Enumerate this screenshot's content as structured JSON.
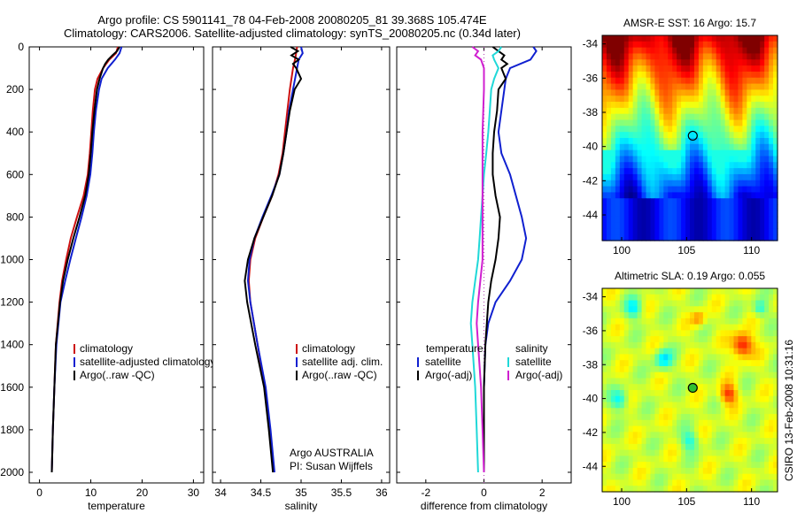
{
  "header": {
    "line1": "Argo profile: CS 5901141_78 04-Feb-2008 20080205_81 39.368S 105.474E",
    "line2": "Climatology: CARS2006. Satellite-adjusted climatology: synTS_20080205.nc (0.34d later)"
  },
  "credit": "CSIRO 13-Feb-2008 10:31:16",
  "chart_data": [
    {
      "type": "line",
      "xlabel": "temperature",
      "xlim": [
        -2,
        32
      ],
      "ylim": [
        2050,
        0
      ],
      "xticks": [
        0,
        10,
        20,
        30
      ],
      "yticks": [
        0,
        200,
        400,
        600,
        800,
        1000,
        1200,
        1400,
        1600,
        1800,
        2000
      ],
      "legend": {
        "placement": "lower-center",
        "entries": [
          {
            "label": "climatology",
            "color": "#cc1010"
          },
          {
            "label": "satellite-adjusted climatology",
            "color": "#1020d0"
          },
          {
            "label": "Argo(..raw -QC)",
            "color": "#000000"
          }
        ]
      },
      "series": [
        {
          "color": "#cc1010",
          "depth": [
            0,
            30,
            60,
            100,
            150,
            200,
            300,
            400,
            500,
            600,
            700,
            800,
            900,
            1000,
            1100,
            1200,
            1400,
            1600,
            1800,
            2000
          ],
          "values": [
            15.3,
            14.9,
            13.6,
            12.4,
            11.3,
            10.8,
            10.4,
            10.1,
            9.8,
            9.4,
            8.6,
            7.3,
            6.1,
            5.2,
            4.4,
            3.9,
            3.2,
            2.9,
            2.6,
            2.4
          ]
        },
        {
          "color": "#1020d0",
          "depth": [
            0,
            30,
            60,
            100,
            150,
            200,
            300,
            400,
            500,
            600,
            700,
            800,
            900,
            1000,
            1100,
            1200,
            1400,
            1600,
            1800,
            2000
          ],
          "values": [
            16.0,
            15.6,
            14.7,
            13.3,
            12.1,
            11.6,
            11.0,
            10.6,
            10.3,
            9.9,
            9.2,
            8.2,
            7.1,
            6.0,
            5.0,
            4.1,
            3.3,
            2.9,
            2.6,
            2.4
          ]
        },
        {
          "color": "#000000",
          "depth": [
            0,
            20,
            40,
            60,
            80,
            100,
            150,
            200,
            300,
            400,
            500,
            600,
            700,
            800,
            900,
            1000,
            1100,
            1200,
            1400,
            1600,
            1800,
            2000
          ],
          "values": [
            15.6,
            15.1,
            14.2,
            13.4,
            12.8,
            12.4,
            11.7,
            11.2,
            10.7,
            10.3,
            10.0,
            9.6,
            8.9,
            7.8,
            6.6,
            5.5,
            4.6,
            4.0,
            3.2,
            2.9,
            2.6,
            2.4
          ]
        }
      ]
    },
    {
      "type": "line",
      "xlabel": "salinity",
      "xlim": [
        33.9,
        36.1
      ],
      "ylim": [
        2050,
        0
      ],
      "xticks": [
        34,
        34.5,
        35,
        35.5,
        36
      ],
      "legend": {
        "placement": "lower-right",
        "entries": [
          {
            "label": "climatology",
            "color": "#cc1010"
          },
          {
            "label": "satellite adj. clim.",
            "color": "#1020d0"
          },
          {
            "label": "Argo(..raw -QC)",
            "color": "#000000"
          }
        ]
      },
      "annotation": [
        "Argo AUSTRALIA",
        "PI: Susan Wijffels"
      ],
      "series": [
        {
          "color": "#cc1010",
          "depth": [
            0,
            50,
            100,
            200,
            300,
            400,
            500,
            600,
            700,
            800,
            900,
            1000,
            1100,
            1200,
            1400,
            1600,
            1800,
            2000
          ],
          "values": [
            34.95,
            34.93,
            34.9,
            34.86,
            34.83,
            34.8,
            34.77,
            34.72,
            34.64,
            34.53,
            34.43,
            34.37,
            34.35,
            34.37,
            34.46,
            34.55,
            34.61,
            34.66
          ]
        },
        {
          "color": "#1020d0",
          "depth": [
            0,
            30,
            60,
            100,
            200,
            300,
            400,
            500,
            600,
            700,
            800,
            900,
            1000,
            1100,
            1200,
            1400,
            1600,
            1800,
            2000
          ],
          "values": [
            35.0,
            35.02,
            34.97,
            34.95,
            34.9,
            34.85,
            34.82,
            34.78,
            34.73,
            34.63,
            34.52,
            34.42,
            34.36,
            34.34,
            34.37,
            34.46,
            34.56,
            34.62,
            34.67
          ]
        },
        {
          "color": "#000000",
          "depth": [
            0,
            20,
            40,
            60,
            80,
            100,
            150,
            200,
            300,
            400,
            500,
            600,
            700,
            800,
            900,
            1000,
            1100,
            1200,
            1400,
            1600,
            1800,
            2000
          ],
          "values": [
            34.87,
            34.96,
            34.88,
            34.97,
            34.9,
            34.94,
            35.0,
            34.92,
            34.86,
            34.82,
            34.78,
            34.73,
            34.64,
            34.53,
            34.42,
            34.34,
            34.3,
            34.33,
            34.43,
            34.54,
            34.6,
            34.65
          ]
        }
      ]
    },
    {
      "type": "line",
      "xlabel": "difference from climatology",
      "xlim": [
        -3,
        3
      ],
      "ylim": [
        2050,
        0
      ],
      "xticks": [
        -2,
        0,
        2
      ],
      "zero_line": true,
      "legend": {
        "placement": "lower-center",
        "columns": [
          {
            "heading": "temperature",
            "entries": [
              {
                "label": "satellite",
                "color": "#1020d0"
              },
              {
                "label": "Argo(-adj)",
                "color": "#000000"
              }
            ]
          },
          {
            "heading": "salinity",
            "entries": [
              {
                "label": "satellite",
                "color": "#20d8d8"
              },
              {
                "label": "Argo(-adj)",
                "color": "#d020d0"
              }
            ]
          }
        ]
      },
      "series": [
        {
          "name": "satellite",
          "color": "#1020d0",
          "depth": [
            0,
            20,
            60,
            100,
            150,
            200,
            300,
            400,
            500,
            600,
            700,
            800,
            900,
            1000,
            1100,
            1200,
            1300,
            1400,
            1600,
            1800,
            2000
          ],
          "values": [
            1.7,
            1.8,
            1.6,
            0.9,
            0.75,
            0.7,
            0.6,
            0.5,
            0.6,
            0.9,
            1.1,
            1.3,
            1.45,
            1.3,
            0.9,
            0.4,
            0.15,
            0.05,
            0.0,
            0.0,
            0.0
          ]
        },
        {
          "name": "Argo(-adj)",
          "color": "#000000",
          "depth": [
            0,
            20,
            40,
            60,
            80,
            100,
            150,
            200,
            300,
            400,
            500,
            600,
            700,
            800,
            900,
            1000,
            1100,
            1200,
            1400,
            1600,
            1800,
            2000
          ],
          "values": [
            0.3,
            0.5,
            0.7,
            0.6,
            0.8,
            0.6,
            0.75,
            0.5,
            0.45,
            0.35,
            0.3,
            0.3,
            0.4,
            0.55,
            0.5,
            0.4,
            0.25,
            0.15,
            0.05,
            0.0,
            0.0,
            0.0
          ]
        },
        {
          "name": "satellite",
          "color": "#20d8d8",
          "depth": [
            0,
            20,
            40,
            60,
            100,
            150,
            200,
            300,
            400,
            500,
            600,
            700,
            800,
            900,
            1000,
            1100,
            1200,
            1300,
            1400,
            1600,
            1800,
            2000
          ],
          "values": [
            0.6,
            0.5,
            0.3,
            0.35,
            0.5,
            0.35,
            0.25,
            0.2,
            0.15,
            0.08,
            0.0,
            -0.05,
            -0.1,
            -0.15,
            -0.2,
            -0.3,
            -0.4,
            -0.45,
            -0.4,
            -0.3,
            -0.25,
            -0.2
          ]
        },
        {
          "name": "Argo(-adj)",
          "color": "#d020d0",
          "depth": [
            0,
            20,
            40,
            60,
            100,
            200,
            400,
            600,
            800,
            1000,
            1200,
            1300,
            1400,
            1600,
            1800,
            2000
          ],
          "values": [
            -0.4,
            -0.2,
            -0.3,
            -0.1,
            0.0,
            0.0,
            -0.05,
            -0.05,
            -0.05,
            -0.05,
            -0.2,
            -0.25,
            -0.2,
            -0.1,
            -0.05,
            0.0
          ]
        }
      ]
    },
    {
      "type": "heatmap",
      "title": "AMSR-E SST: 16 Argo: 15.7",
      "xlim": [
        98.5,
        112
      ],
      "ylim": [
        -45.5,
        -33.5
      ],
      "xticks": [
        100,
        105,
        110
      ],
      "yticks": [
        -34,
        -36,
        -38,
        -40,
        -42,
        -44
      ],
      "marker": {
        "lon": 105.474,
        "lat": -39.368,
        "fill": "none"
      },
      "colormap": "jet"
    },
    {
      "type": "heatmap",
      "title": "Altimetric SLA: 0.19 Argo: 0.055",
      "xlim": [
        98.5,
        112
      ],
      "ylim": [
        -45.5,
        -33.5
      ],
      "xticks": [
        100,
        105,
        110
      ],
      "yticks": [
        -34,
        -36,
        -38,
        -40,
        -42,
        -44
      ],
      "marker": {
        "lon": 105.474,
        "lat": -39.368,
        "fill": "#30c030"
      },
      "colormap": "jet"
    }
  ]
}
